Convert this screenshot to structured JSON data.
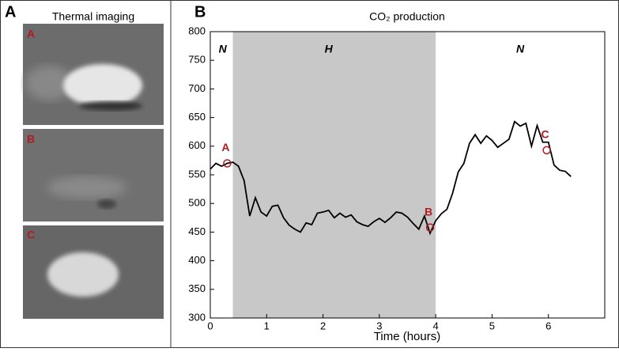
{
  "panel_a": {
    "label": "A",
    "title": "Thermal imaging",
    "images": [
      "A",
      "B",
      "C"
    ]
  },
  "chart_data": {
    "type": "line",
    "panel_label": "B",
    "title": "CO₂ production",
    "x_label": "Time (hours)",
    "x": [
      0,
      0.1,
      0.2,
      0.3,
      0.4,
      0.5,
      0.6,
      0.7,
      0.8,
      0.9,
      1,
      1.1,
      1.2,
      1.3,
      1.4,
      1.5,
      1.6,
      1.7,
      1.8,
      1.9,
      2,
      2.1,
      2.2,
      2.3,
      2.4,
      2.5,
      2.6,
      2.7,
      2.8,
      2.9,
      3,
      3.1,
      3.2,
      3.3,
      3.4,
      3.5,
      3.6,
      3.7,
      3.8,
      3.9,
      4,
      4.1,
      4.2,
      4.3,
      4.4,
      4.5,
      4.6,
      4.7,
      4.8,
      4.9,
      5,
      5.1,
      5.2,
      5.3,
      5.4,
      5.5,
      5.6,
      5.7,
      5.8,
      5.9,
      6,
      6.1,
      6.2,
      6.3,
      6.4
    ],
    "values": [
      560,
      570,
      565,
      570,
      572,
      565,
      540,
      478,
      510,
      485,
      478,
      495,
      497,
      475,
      462,
      455,
      450,
      466,
      463,
      483,
      485,
      488,
      475,
      483,
      476,
      480,
      468,
      463,
      460,
      468,
      474,
      467,
      475,
      485,
      483,
      476,
      465,
      455,
      478,
      448,
      470,
      482,
      490,
      518,
      555,
      570,
      605,
      620,
      605,
      618,
      610,
      598,
      605,
      612,
      643,
      635,
      640,
      600,
      636,
      607,
      607,
      567,
      558,
      556,
      547
    ],
    "color": "#000000",
    "shade": [
      0.4,
      4.0
    ],
    "annotations": [
      "N",
      "H",
      "N"
    ],
    "markers": [
      {
        "label": "A",
        "x": 0.3,
        "y": 570
      },
      {
        "label": "B",
        "x": 3.9,
        "y": 458
      },
      {
        "label": "C",
        "x": 5.97,
        "y": 593
      }
    ],
    "marker_color": "#b01c22",
    "xlim": [
      0,
      7
    ],
    "xticks": [
      0,
      1,
      2,
      3,
      4,
      5,
      6
    ],
    "ylim": [
      300,
      800
    ],
    "yticks": [
      300,
      350,
      400,
      450,
      500,
      550,
      600,
      650,
      700,
      750,
      800
    ]
  }
}
